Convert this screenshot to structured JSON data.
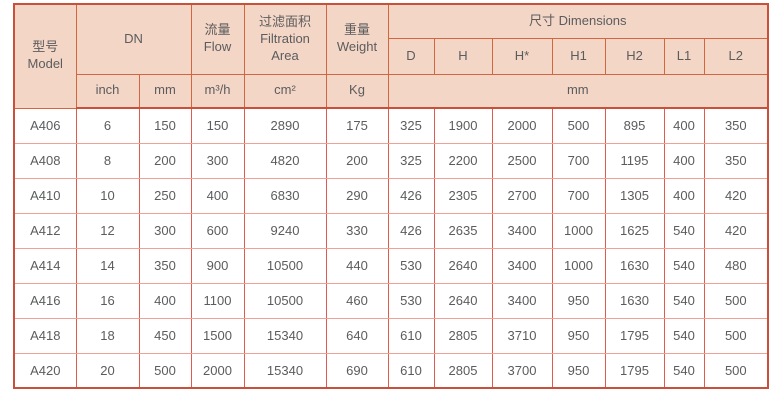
{
  "table": {
    "header": {
      "model": {
        "zh": "型号",
        "en": "Model"
      },
      "dn": "DN",
      "flow": {
        "zh": "流量",
        "en": "Flow"
      },
      "filtration": {
        "zh": "过滤面积",
        "en_line1": "Filtration",
        "en_line2": "Area"
      },
      "weight": {
        "zh": "重量",
        "en": "Weight"
      },
      "dimensions": "尺寸 Dimensions",
      "dim_cols": [
        "D",
        "H",
        "H*",
        "H1",
        "H2",
        "L1",
        "L2"
      ],
      "units": {
        "inch": "inch",
        "mm": "mm",
        "flow": "m³/h",
        "area": "cm²",
        "weight": "Kg",
        "dims_mm": "mm"
      }
    },
    "rows": [
      [
        "A406",
        "6",
        "150",
        "150",
        "2890",
        "175",
        "325",
        "1900",
        "2000",
        "500",
        "895",
        "400",
        "350"
      ],
      [
        "A408",
        "8",
        "200",
        "300",
        "4820",
        "200",
        "325",
        "2200",
        "2500",
        "700",
        "1195",
        "400",
        "350"
      ],
      [
        "A410",
        "10",
        "250",
        "400",
        "6830",
        "290",
        "426",
        "2305",
        "2700",
        "700",
        "1305",
        "400",
        "420"
      ],
      [
        "A412",
        "12",
        "300",
        "600",
        "9240",
        "330",
        "426",
        "2635",
        "3400",
        "1000",
        "1625",
        "540",
        "420"
      ],
      [
        "A414",
        "14",
        "350",
        "900",
        "10500",
        "440",
        "530",
        "2640",
        "3400",
        "1000",
        "1630",
        "540",
        "480"
      ],
      [
        "A416",
        "16",
        "400",
        "1100",
        "10500",
        "460",
        "530",
        "2640",
        "3400",
        "950",
        "1630",
        "540",
        "500"
      ],
      [
        "A418",
        "18",
        "450",
        "1500",
        "15340",
        "640",
        "610",
        "2805",
        "3710",
        "950",
        "1795",
        "540",
        "500"
      ],
      [
        "A420",
        "20",
        "500",
        "2000",
        "15340",
        "690",
        "610",
        "2805",
        "3700",
        "950",
        "1795",
        "540",
        "500"
      ]
    ],
    "column_keys": [
      "model",
      "dn-inch",
      "dn-mm",
      "flow",
      "filtration-area",
      "weight",
      "dim-d",
      "dim-h",
      "dim-hstar",
      "dim-h1",
      "dim-h2",
      "dim-l1",
      "dim-l2"
    ]
  },
  "colors": {
    "header_bg": "#f4d6c6",
    "border_strong": "#c9513c",
    "border_header": "#d4663f",
    "border_data_v": "#e15a4e",
    "border_data_h": "#f0a196",
    "text": "#5b5c5e",
    "page_bg": "#ffffff"
  }
}
